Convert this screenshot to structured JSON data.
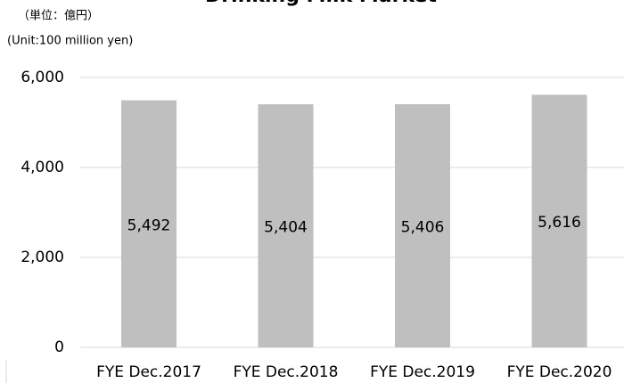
{
  "chart_data": {
    "type": "bar",
    "title": "Drinking Milk Market",
    "unit_label_ja": "（単位：億円）",
    "unit_label": "(Unit:100 million yen)",
    "categories": [
      "FYE Dec.2017",
      "FYE Dec.2018",
      "FYE Dec.2019",
      "FYE Dec.2020"
    ],
    "values": [
      5492,
      5404,
      5406,
      5616
    ],
    "value_labels": [
      "5,492",
      "5,404",
      "5,406",
      "5,616"
    ],
    "color": "#bfbfbf",
    "ylim": [
      0,
      6000
    ],
    "yticks": [
      0,
      {
        "value": 2000,
        "label": "2,000"
      },
      {
        "value": 4000,
        "label": "4,000"
      },
      {
        "value": 6000,
        "label": "6,000"
      }
    ],
    "grid": true
  }
}
